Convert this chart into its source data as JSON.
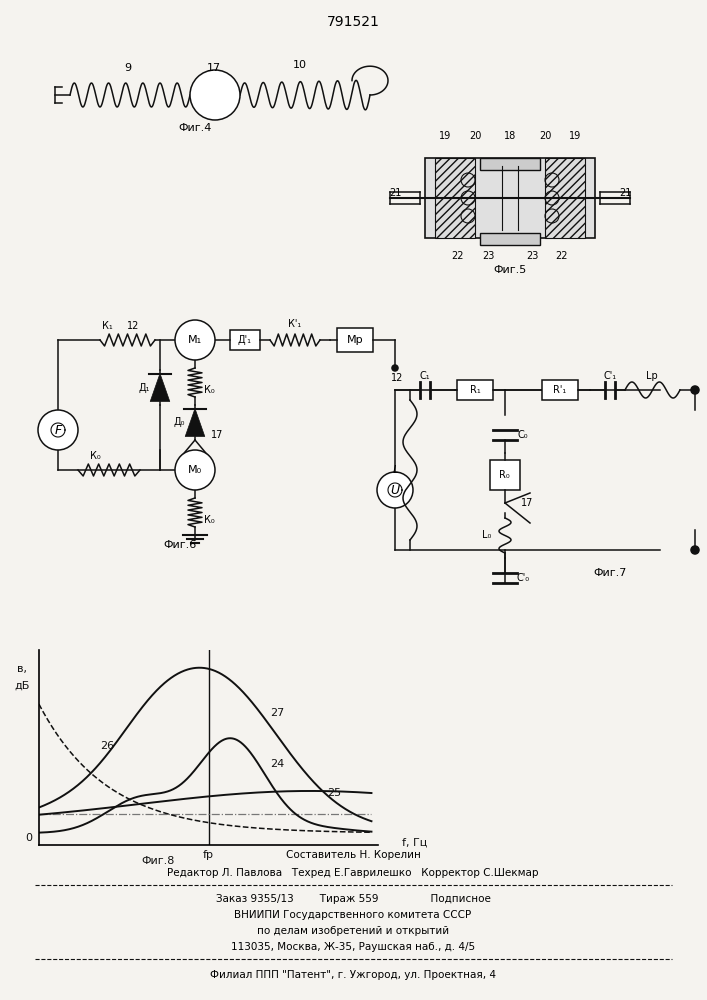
{
  "patent_number": "791521",
  "background_color": "#f5f3ef",
  "fig4_label": "Фиг.4",
  "fig5_label": "Фиг.5",
  "fig6_label": "Фиг.6",
  "fig7_label": "Фиг.7",
  "fig8_label": "Фиг.8",
  "footer_line1": "Составитель Н. Корелин",
  "footer_line2": "Редактор Л. Павлова   Техред Е.Гаврилешко   Корректор С.Шекмар",
  "footer_line3": "Заказ 9355/13        Тираж 559                Подписное",
  "footer_line4": "ВНИИПИ Государственного комитета СССР",
  "footer_line5": "по делам изобретений и открытий",
  "footer_line6": "113035, Москва, Ж-35, Раушская наб., д. 4/5",
  "footer_line7": "Филиал ППП \"Патент\", г. Ужгород, ул. Проектная, 4"
}
